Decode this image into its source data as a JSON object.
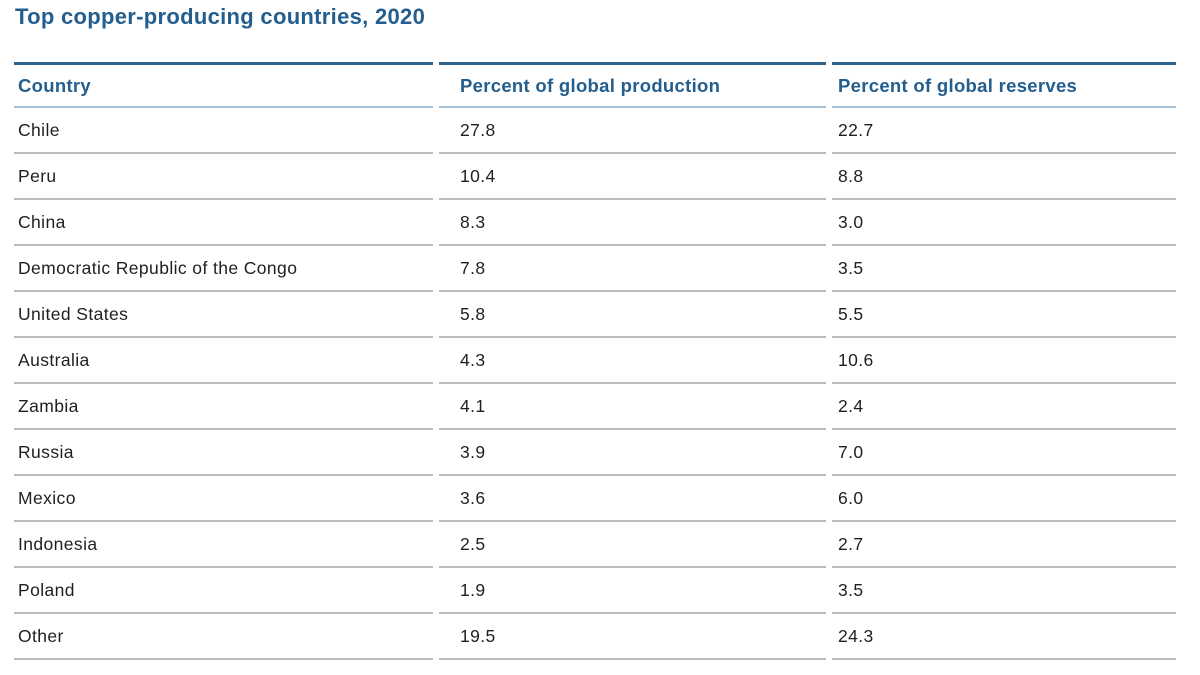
{
  "title": "Top copper-producing countries, 2020",
  "colors": {
    "heading_blue": "#235e8e",
    "rule_blue_thick": "#2e6390",
    "rule_blue_light": "#a9c1d5",
    "rule_gray": "#babec3",
    "body_text": "#1f1f1f"
  },
  "table": {
    "columns": [
      "Country",
      "Percent of global production",
      "Percent of global reserves"
    ],
    "rows": [
      {
        "country": "Chile",
        "production": "27.8",
        "reserves": "22.7"
      },
      {
        "country": "Peru",
        "production": "10.4",
        "reserves": "8.8"
      },
      {
        "country": "China",
        "production": "8.3",
        "reserves": "3.0"
      },
      {
        "country": "Democratic Republic of the Congo",
        "production": "7.8",
        "reserves": "3.5"
      },
      {
        "country": "United States",
        "production": "5.8",
        "reserves": "5.5"
      },
      {
        "country": "Australia",
        "production": "4.3",
        "reserves": "10.6"
      },
      {
        "country": "Zambia",
        "production": "4.1",
        "reserves": "2.4"
      },
      {
        "country": "Russia",
        "production": "3.9",
        "reserves": "7.0"
      },
      {
        "country": "Mexico",
        "production": "3.6",
        "reserves": "6.0"
      },
      {
        "country": "Indonesia",
        "production": "2.5",
        "reserves": "2.7"
      },
      {
        "country": "Poland",
        "production": "1.9",
        "reserves": "3.5"
      },
      {
        "country": "Other",
        "production": "19.5",
        "reserves": "24.3"
      }
    ]
  },
  "chart_data": {
    "type": "table",
    "title": "Top copper-producing countries, 2020",
    "categories": [
      "Chile",
      "Peru",
      "China",
      "Democratic Republic of the Congo",
      "United States",
      "Australia",
      "Zambia",
      "Russia",
      "Mexico",
      "Indonesia",
      "Poland",
      "Other"
    ],
    "series": [
      {
        "name": "Percent of global production",
        "values": [
          27.8,
          10.4,
          8.3,
          7.8,
          5.8,
          4.3,
          4.1,
          3.9,
          3.6,
          2.5,
          1.9,
          19.5
        ]
      },
      {
        "name": "Percent of global reserves",
        "values": [
          22.7,
          8.8,
          3.0,
          3.5,
          5.5,
          10.6,
          2.4,
          7.0,
          6.0,
          2.7,
          3.5,
          24.3
        ]
      }
    ],
    "layout": {
      "grid": "horizontal-rules-only",
      "legend": "none"
    }
  }
}
